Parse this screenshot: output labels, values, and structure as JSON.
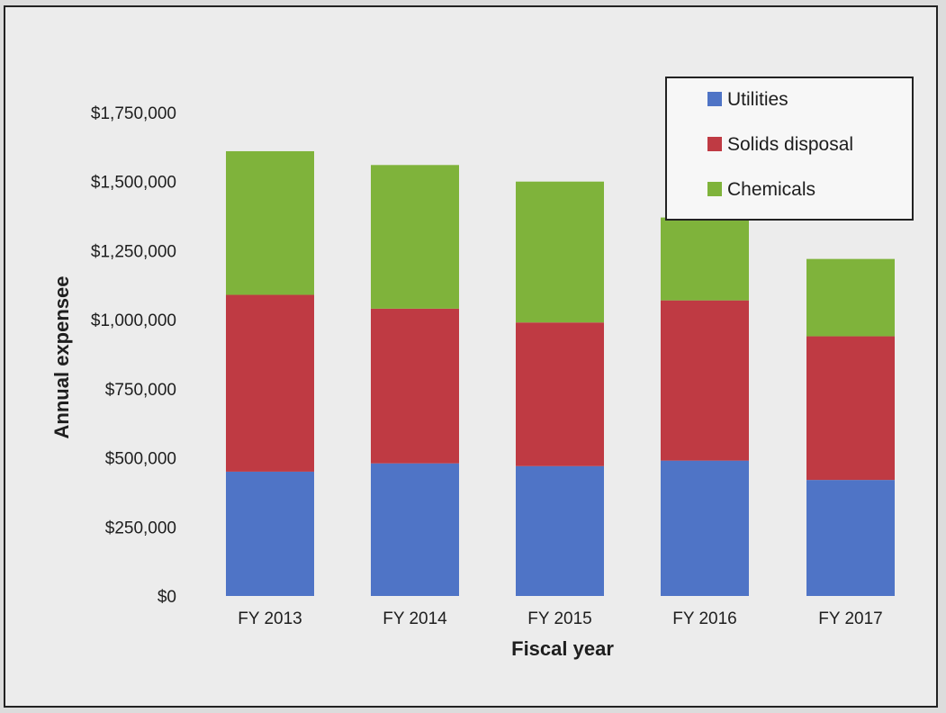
{
  "chart_data": {
    "type": "bar",
    "stacked": true,
    "categories": [
      "FY 2013",
      "FY 2014",
      "FY 2015",
      "FY 2016",
      "FY 2017"
    ],
    "series": [
      {
        "name": "Utilities",
        "color": "#4f74c6",
        "values": [
          450000,
          480000,
          470000,
          490000,
          420000
        ]
      },
      {
        "name": "Solids disposal",
        "color": "#bf3a43",
        "values": [
          640000,
          560000,
          520000,
          580000,
          520000
        ]
      },
      {
        "name": "Chemicals",
        "color": "#7fb33b",
        "values": [
          520000,
          520000,
          510000,
          300000,
          280000
        ]
      }
    ],
    "xlabel": "Fiscal year",
    "ylabel": "Annual expensee",
    "ylim": [
      0,
      1750000
    ],
    "yticks": [
      "$0",
      "$250,000",
      "$500,000",
      "$750,000",
      "$1,000,000",
      "$1,250,000",
      "$1,500,000",
      "$1,750,000"
    ],
    "legend_position": "top-right",
    "grid": false
  }
}
